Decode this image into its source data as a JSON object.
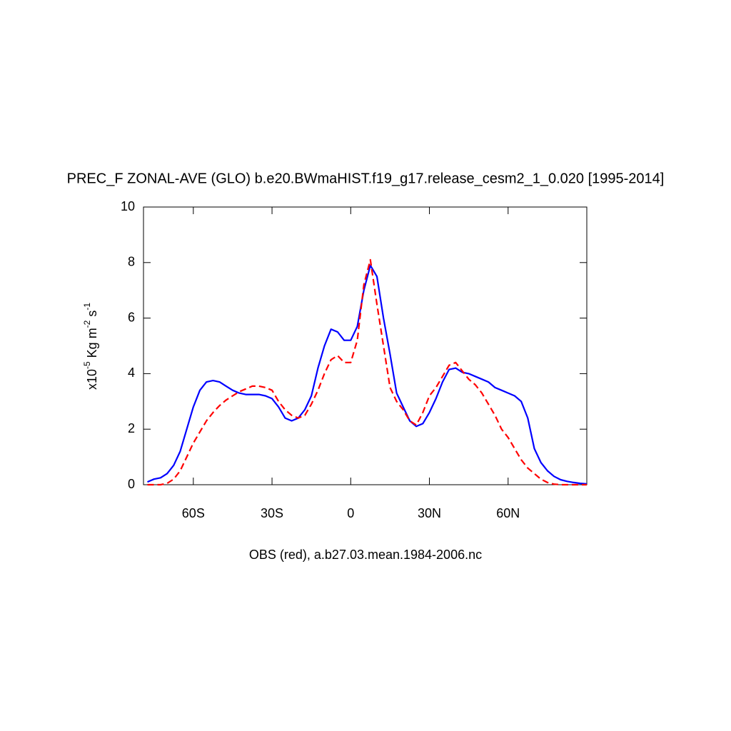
{
  "chart_data": {
    "type": "line",
    "title": "PREC_F ZONAL-AVE (GLO) b.e20.BWmaHIST.f19_g17.release_cesm2_1_0.020 [1995-2014]",
    "x_label": "OBS (red), a.b27.03.mean.1984-2006.nc",
    "y_label_parts": [
      "x10",
      "-5",
      " Kg m",
      "-2",
      " s",
      "-1"
    ],
    "xlim": [
      -79,
      90
    ],
    "ylim": [
      0,
      10
    ],
    "xticks": [
      {
        "value": -60,
        "label": "60S"
      },
      {
        "value": -30,
        "label": "30S"
      },
      0,
      {
        "value": 30,
        "label": "30N"
      },
      {
        "value": 60,
        "label": "60N"
      }
    ],
    "yticks": [
      0,
      2,
      4,
      6,
      8,
      10
    ],
    "x": [
      -77.5,
      -75,
      -72.5,
      -70,
      -67.5,
      -65,
      -62.5,
      -60,
      -57.5,
      -55,
      -52.5,
      -50,
      -47.5,
      -45,
      -42.5,
      -40,
      -37.5,
      -35,
      -32.5,
      -30,
      -27.5,
      -25,
      -22.5,
      -20,
      -17.5,
      -15,
      -12.5,
      -10,
      -7.5,
      -5,
      -2.5,
      0,
      2.5,
      5,
      7.5,
      10,
      12.5,
      15,
      17.5,
      20,
      22.5,
      25,
      27.5,
      30,
      32.5,
      35,
      37.5,
      40,
      42.5,
      45,
      47.5,
      50,
      52.5,
      55,
      57.5,
      60,
      62.5,
      65,
      67.5,
      70,
      72.5,
      75,
      77.5,
      80,
      82.5,
      85,
      87.5,
      90
    ],
    "series": [
      {
        "color": "#0000ff",
        "dashed": false,
        "values": [
          0.1,
          0.2,
          0.25,
          0.4,
          0.7,
          1.2,
          2.0,
          2.8,
          3.4,
          3.7,
          3.75,
          3.7,
          3.55,
          3.4,
          3.3,
          3.25,
          3.25,
          3.25,
          3.2,
          3.1,
          2.8,
          2.4,
          2.3,
          2.4,
          2.7,
          3.2,
          4.2,
          5.0,
          5.6,
          5.5,
          5.2,
          5.2,
          5.7,
          7.0,
          7.9,
          7.5,
          6.0,
          4.7,
          3.3,
          2.8,
          2.3,
          2.1,
          2.2,
          2.6,
          3.1,
          3.7,
          4.15,
          4.2,
          4.05,
          4.0,
          3.9,
          3.8,
          3.7,
          3.5,
          3.4,
          3.3,
          3.2,
          3.0,
          2.4,
          1.3,
          0.8,
          0.5,
          0.3,
          0.18,
          0.12,
          0.08,
          0.05,
          0.03
        ]
      },
      {
        "color": "#ff0000",
        "dashed": true,
        "values": [
          0,
          0,
          0,
          0.05,
          0.2,
          0.5,
          1.0,
          1.5,
          1.9,
          2.3,
          2.6,
          2.85,
          3.05,
          3.2,
          3.35,
          3.45,
          3.55,
          3.55,
          3.5,
          3.4,
          3.0,
          2.7,
          2.5,
          2.4,
          2.5,
          2.9,
          3.4,
          4.0,
          4.5,
          4.65,
          4.4,
          4.4,
          5.2,
          7.2,
          8.1,
          6.5,
          5.0,
          3.5,
          3.0,
          2.7,
          2.3,
          2.15,
          2.6,
          3.2,
          3.5,
          3.9,
          4.3,
          4.4,
          4.1,
          3.8,
          3.6,
          3.3,
          2.9,
          2.5,
          2.0,
          1.7,
          1.3,
          0.9,
          0.6,
          0.4,
          0.2,
          0.08,
          0.02,
          0,
          0,
          0,
          0,
          0
        ]
      }
    ]
  }
}
